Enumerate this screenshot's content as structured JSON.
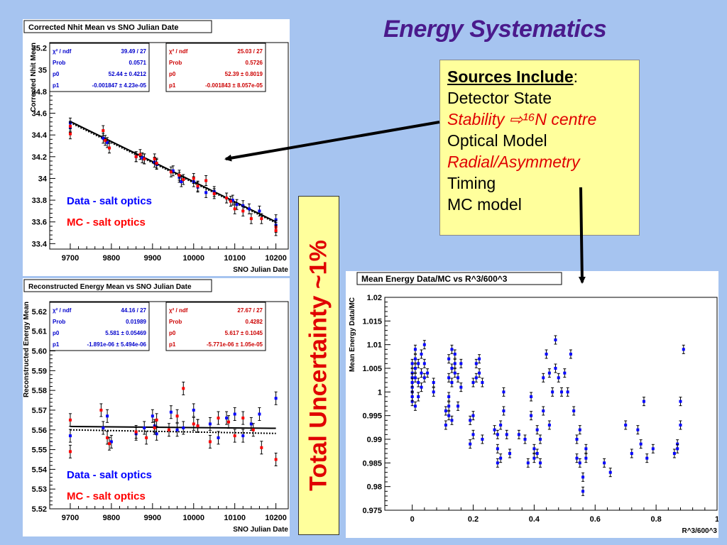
{
  "slide": {
    "title": "Energy Systematics",
    "sources_header": "Sources Include",
    "sources": [
      {
        "text": "Detector State",
        "style": "normal"
      },
      {
        "text": "Stability ⇨¹⁶N centre",
        "style": "red"
      },
      {
        "text": "Optical Model",
        "style": "normal"
      },
      {
        "text": "Radial/Asymmetry",
        "style": "red"
      },
      {
        "text": "Timing",
        "style": "normal"
      },
      {
        "text": "MC model",
        "style": "normal"
      }
    ],
    "uncertainty_label": "Total Uncertainty ~1%"
  },
  "chart_data": [
    {
      "type": "scatter",
      "title": "Corrected Nhit Mean vs SNO Julian Date",
      "xlabel": "SNO Julian Date",
      "ylabel": "Corrected Nhit Mean",
      "xlim": [
        9650,
        10230
      ],
      "ylim": [
        33.35,
        35.25
      ],
      "xticks": [
        9700,
        9800,
        9900,
        10000,
        10100,
        10200
      ],
      "yticks": [
        33.4,
        33.6,
        33.8,
        34,
        34.2,
        34.4,
        34.6,
        34.8,
        35,
        35.2
      ],
      "stats": [
        {
          "color": "#0000cc",
          "rows": [
            [
              "χ² / ndf",
              "39.49 / 27"
            ],
            [
              "Prob",
              "0.0571"
            ],
            [
              "p0",
              "52.44 ± 0.4212"
            ],
            [
              "p1",
              "-0.001847 ± 4.23e-05"
            ]
          ]
        },
        {
          "color": "#cc0000",
          "rows": [
            [
              "χ² / ndf",
              "25.03 / 27"
            ],
            [
              "Prob",
              "0.5726"
            ],
            [
              "p0",
              "52.39 ± 0.8019"
            ],
            [
              "p1",
              "-0.001843 ± 8.057e-05"
            ]
          ]
        }
      ],
      "fit_lines": [
        {
          "name": "Data - salt optics",
          "p0": 52.44,
          "p1": -0.001847,
          "style": "solid"
        },
        {
          "name": "MC - salt optics",
          "p0": 52.39,
          "p1": -0.001843,
          "style": "dotted"
        }
      ],
      "series": [
        {
          "name": "Data - salt optics",
          "color": "#0000ff",
          "x": [
            9700,
            9700,
            9780,
            9790,
            9795,
            9860,
            9875,
            9880,
            9905,
            9910,
            9950,
            9965,
            9970,
            10000,
            10010,
            10030,
            10050,
            10080,
            10095,
            10105,
            10120,
            10135,
            10160,
            10200,
            10200
          ],
          "y": [
            34.51,
            34.47,
            34.37,
            34.33,
            34.28,
            34.2,
            34.19,
            34.18,
            34.15,
            34.13,
            34.07,
            34.01,
            33.97,
            33.97,
            33.92,
            33.87,
            33.88,
            33.82,
            33.8,
            33.76,
            33.75,
            33.72,
            33.7,
            33.62,
            33.57
          ]
        },
        {
          "name": "MC - salt optics",
          "color": "#ff0000",
          "x": [
            9700,
            9700,
            9780,
            9785,
            9795,
            9860,
            9870,
            9880,
            9905,
            9910,
            9945,
            9965,
            9975,
            10000,
            10010,
            10030,
            10050,
            10080,
            10090,
            10100,
            10120,
            10140,
            10165,
            10200,
            10200
          ],
          "y": [
            34.41,
            34.48,
            34.44,
            34.35,
            34.28,
            34.2,
            34.22,
            34.18,
            34.18,
            34.14,
            34.06,
            34.03,
            33.99,
            34.0,
            33.93,
            33.98,
            33.86,
            33.82,
            33.79,
            33.72,
            33.7,
            33.63,
            33.63,
            33.55,
            33.52
          ]
        }
      ]
    },
    {
      "type": "scatter",
      "title": "Reconstructed Energy Mean vs SNO Julian Date",
      "xlabel": "SNO Julian Date",
      "ylabel": "Reconstructed Energy Mean",
      "xlim": [
        9650,
        10230
      ],
      "ylim": [
        5.52,
        5.625
      ],
      "xticks": [
        9700,
        9800,
        9900,
        10000,
        10100,
        10200
      ],
      "yticks": [
        5.52,
        5.53,
        5.54,
        5.55,
        5.56,
        5.57,
        5.58,
        5.59,
        5.6,
        5.61,
        5.62
      ],
      "stats": [
        {
          "color": "#0000cc",
          "rows": [
            [
              "χ² / ndf",
              "44.16 / 27"
            ],
            [
              "Prob",
              "0.01989"
            ],
            [
              "p0",
              "5.581 ± 0.05469"
            ],
            [
              "p1",
              "-1.891e-06 ± 5.494e-06"
            ]
          ]
        },
        {
          "color": "#cc0000",
          "rows": [
            [
              "χ² / ndf",
              "27.67 / 27"
            ],
            [
              "Prob",
              "0.4282"
            ],
            [
              "p0",
              "5.617 ± 0.1045"
            ],
            [
              "p1",
              "-5.771e-06 ± 1.05e-05"
            ]
          ]
        }
      ],
      "fit_lines": [
        {
          "name": "Data - salt optics",
          "y_start": 5.5617,
          "y_end": 5.5608,
          "style": "solid"
        },
        {
          "name": "MC - salt optics",
          "y_start": 5.56,
          "y_end": 5.5582,
          "style": "dotted"
        }
      ],
      "series": [
        {
          "name": "Data - salt optics",
          "color": "#0000ff",
          "x": [
            9700,
            9780,
            9790,
            9800,
            9860,
            9880,
            9900,
            9905,
            9910,
            9945,
            9960,
            9975,
            10000,
            10010,
            10040,
            10060,
            10080,
            10100,
            10120,
            10140,
            10160,
            10200
          ],
          "y": [
            5.557,
            5.561,
            5.567,
            5.554,
            5.558,
            5.561,
            5.567,
            5.562,
            5.558,
            5.569,
            5.56,
            5.561,
            5.57,
            5.562,
            5.563,
            5.556,
            5.566,
            5.568,
            5.557,
            5.563,
            5.568,
            5.576
          ]
        },
        {
          "name": "MC - salt optics",
          "color": "#ff0000",
          "x": [
            9700,
            9700,
            9775,
            9790,
            9795,
            9860,
            9885,
            9905,
            9910,
            9940,
            9960,
            9975,
            10000,
            10010,
            10040,
            10060,
            10085,
            10100,
            10120,
            10145,
            10165,
            10200
          ],
          "y": [
            5.565,
            5.549,
            5.57,
            5.556,
            5.553,
            5.559,
            5.556,
            5.561,
            5.565,
            5.56,
            5.567,
            5.581,
            5.563,
            5.562,
            5.554,
            5.566,
            5.564,
            5.557,
            5.566,
            5.56,
            5.551,
            5.545
          ]
        }
      ]
    },
    {
      "type": "scatter",
      "title": "Mean Energy Data/MC vs R^3/600^3",
      "xlabel": "R^3/600^3",
      "ylabel": "Mean Energy Data/MC",
      "xlim": [
        -0.09,
        1.0
      ],
      "ylim": [
        0.975,
        1.02
      ],
      "xticks": [
        0,
        0.2,
        0.4,
        0.6,
        0.8,
        1
      ],
      "yticks": [
        0.975,
        0.98,
        0.985,
        0.99,
        0.995,
        1,
        1.005,
        1.01,
        1.015,
        1.02
      ],
      "series": [
        {
          "name": "Data/MC",
          "color": "#0000ff",
          "x": [
            0,
            0,
            0,
            0,
            0,
            0,
            0,
            0,
            0.01,
            0.01,
            0.01,
            0.01,
            0.01,
            0.02,
            0.02,
            0.02,
            0.03,
            0.03,
            0.03,
            0.04,
            0.04,
            0.04,
            0.05,
            0.07,
            0.07,
            0.11,
            0.11,
            0.12,
            0.12,
            0.12,
            0.12,
            0.12,
            0.13,
            0.13,
            0.13,
            0.13,
            0.14,
            0.14,
            0.14,
            0.15,
            0.15,
            0.16,
            0.16,
            0.19,
            0.19,
            0.2,
            0.2,
            0.2,
            0.21,
            0.21,
            0.22,
            0.22,
            0.23,
            0.23,
            0.27,
            0.28,
            0.28,
            0.28,
            0.29,
            0.29,
            0.3,
            0.3,
            0.31,
            0.32,
            0.35,
            0.37,
            0.38,
            0.39,
            0.39,
            0.4,
            0.4,
            0.41,
            0.41,
            0.42,
            0.42,
            0.43,
            0.43,
            0.44,
            0.45,
            0.45,
            0.46,
            0.47,
            0.47,
            0.48,
            0.49,
            0.5,
            0.51,
            0.52,
            0.53,
            0.54,
            0.54,
            0.55,
            0.55,
            0.56,
            0.56,
            0.57,
            0.57,
            0.63,
            0.65,
            0.7,
            0.72,
            0.74,
            0.75,
            0.76,
            0.77,
            0.79,
            0.86,
            0.87,
            0.87,
            0.88,
            0.88,
            0.89
          ],
          "y": [
            1.004,
            1.0,
            1.006,
            0.998,
            1.003,
            1.001,
            0.999,
            1.002,
            1.005,
            1.009,
            1.003,
            1.007,
            0.997,
            1.002,
            1.006,
            0.999,
            1.001,
            1.004,
            1.008,
            1.006,
            1.01,
            1.003,
            1.004,
            1.0,
            1.002,
            0.996,
            0.993,
            1.007,
            1.003,
            0.999,
            0.997,
            0.995,
            1.009,
            1.005,
            1.002,
            0.994,
            1.006,
            1.004,
            1.008,
            1.003,
            0.997,
            1.006,
            1.001,
            0.994,
            0.989,
            0.991,
            0.995,
            1.002,
            1.003,
            1.006,
            1.007,
            1.004,
            1.002,
            0.99,
            0.992,
            0.988,
            0.985,
            0.991,
            0.993,
            0.986,
            1.0,
            0.996,
            0.991,
            0.987,
            0.991,
            0.99,
            0.985,
            0.999,
            0.995,
            0.988,
            0.986,
            0.992,
            0.987,
            0.985,
            0.99,
            0.996,
            1.003,
            1.008,
            0.993,
            1.004,
            1.0,
            1.005,
            1.011,
            1.003,
            1.0,
            1.004,
            1.0,
            1.008,
            0.996,
            0.99,
            0.986,
            0.992,
            0.985,
            0.982,
            0.979,
            0.986,
            0.988,
            0.985,
            0.983,
            0.993,
            0.987,
            0.992,
            0.989,
            0.998,
            0.986,
            0.988,
            0.987,
            0.989,
            0.988,
            0.993,
            0.998,
            1.009
          ]
        }
      ]
    }
  ]
}
